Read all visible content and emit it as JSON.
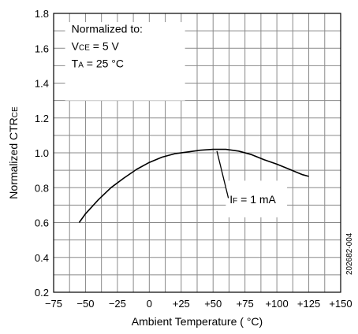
{
  "chart_data": {
    "type": "line",
    "xlabel": "Ambient Temperature ( °C)",
    "ylabel": {
      "main": "Normalized CTR",
      "sub": "CE"
    },
    "xlim": [
      -75,
      150
    ],
    "ylim": [
      0.2,
      1.8
    ],
    "x_ticks": [
      -75,
      -50,
      -25,
      0,
      25,
      50,
      75,
      100,
      125,
      150
    ],
    "x_tick_labels": [
      "−75",
      "−50",
      "−25",
      "0",
      "+25",
      "+50",
      "+75",
      "+100",
      "+125",
      "+150"
    ],
    "y_ticks": [
      0.2,
      0.4,
      0.6,
      0.8,
      1.0,
      1.2,
      1.4,
      1.6,
      1.8
    ],
    "y_tick_labels": [
      "0.2",
      "0.4",
      "0.6",
      "0.8",
      "1.0",
      "1.2",
      "1.4",
      "1.6",
      "1.8"
    ],
    "grid": true,
    "minor_grid": true,
    "series": [
      {
        "name": "IF = 1 mA",
        "x": [
          -55,
          -50,
          -40,
          -30,
          -20,
          -10,
          0,
          10,
          20,
          30,
          40,
          50,
          60,
          70,
          80,
          90,
          100,
          110,
          120,
          125
        ],
        "y": [
          0.6,
          0.65,
          0.73,
          0.8,
          0.855,
          0.905,
          0.945,
          0.975,
          0.995,
          1.005,
          1.015,
          1.02,
          1.02,
          1.01,
          0.99,
          0.96,
          0.935,
          0.905,
          0.875,
          0.865
        ],
        "color": "#000000"
      }
    ],
    "annotations": {
      "normalization": {
        "heading": "Normalized to:",
        "vce": {
          "main": "V",
          "sub": "CE",
          "rest": " = 5 V"
        },
        "ta": {
          "main": "T",
          "sub": "A",
          "rest": " = 25 °C"
        }
      },
      "series_label": {
        "main": "I",
        "sub": "F",
        "rest": " = 1 mA"
      },
      "figure_id": "202682-004"
    }
  }
}
